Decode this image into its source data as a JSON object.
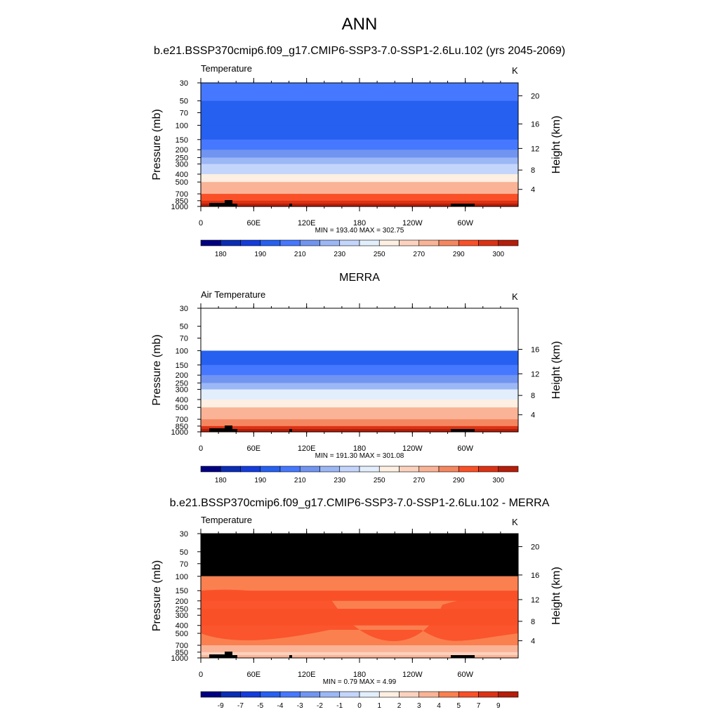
{
  "figure": {
    "title": "ANN"
  },
  "colors": {
    "warm_palette": [
      "#000080",
      "#0a2db4",
      "#143cdc",
      "#2560f0",
      "#4678ff",
      "#7094f0",
      "#9cb7f5",
      "#c4d5fc",
      "#e2eefc",
      "#fdefe2",
      "#fcd2be",
      "#fab396",
      "#f58760",
      "#fa5028",
      "#dc3214",
      "#b41e0a",
      "#820000"
    ],
    "diff_palette": [
      "#000080",
      "#0a2db4",
      "#143cdc",
      "#2560f0",
      "#4678ff",
      "#7094f0",
      "#9cb7f5",
      "#c4d5fc",
      "#e2eefc",
      "#fdefe2",
      "#fcd2be",
      "#fab396",
      "#fa8050",
      "#fa5028",
      "#dc3214",
      "#b41e0a",
      "#820000"
    ],
    "missing": "#000000",
    "background": "#ffffff"
  },
  "chart_data": [
    {
      "type": "heatmap",
      "panel_title": "b.e21.BSSP370cmip6.f09_g17.CMIP6-SSP3-7.0-SSP1-2.6Lu.102 (yrs 2045-2069)",
      "var_label": "Temperature",
      "units": "K",
      "xlabel": "",
      "ylabel": "Pressure (mb)",
      "y2label": "Height (km)",
      "x_ticks": [
        "0",
        "60E",
        "120E",
        "180",
        "120W",
        "60W"
      ],
      "y_ticks": [
        "30",
        "50",
        "70",
        "100",
        "150",
        "200",
        "250",
        "300",
        "400",
        "500",
        "700",
        "850",
        "1000"
      ],
      "y2_ticks": [
        "20",
        "16",
        "12",
        "8",
        "4"
      ],
      "stats": "MIN = 193.40  MAX = 302.75",
      "min": 193.4,
      "max": 302.75,
      "colorbar_labels": [
        "180",
        "190",
        "210",
        "230",
        "250",
        "270",
        "290",
        "300"
      ],
      "field": {
        "levels_mb": [
          30,
          50,
          70,
          100,
          150,
          200,
          250,
          300,
          400,
          500,
          700,
          850,
          1000
        ],
        "colour_index_by_level": [
          4,
          3,
          3,
          3,
          4,
          5,
          6,
          7,
          9,
          11,
          13,
          14,
          15
        ],
        "missing_above_mb": null
      }
    },
    {
      "type": "heatmap",
      "panel_title": "MERRA",
      "var_label": "Air Temperature",
      "units": "K",
      "xlabel": "",
      "ylabel": "Pressure (mb)",
      "y2label": "Height (km)",
      "x_ticks": [
        "0",
        "60E",
        "120E",
        "180",
        "120W",
        "60W"
      ],
      "y_ticks": [
        "30",
        "50",
        "70",
        "100",
        "150",
        "200",
        "250",
        "300",
        "400",
        "500",
        "700",
        "850",
        "1000"
      ],
      "y2_ticks": [
        "16",
        "12",
        "8",
        "4"
      ],
      "stats": "MIN = 191.30  MAX = 301.08",
      "min": 191.3,
      "max": 301.08,
      "colorbar_labels": [
        "180",
        "190",
        "210",
        "230",
        "250",
        "270",
        "290",
        "300"
      ],
      "field": {
        "levels_mb": [
          100,
          150,
          200,
          250,
          300,
          400,
          500,
          700,
          850,
          1000
        ],
        "colour_index_by_level": [
          3,
          4,
          5,
          6,
          8,
          9,
          11,
          12,
          14,
          15
        ],
        "missing_above_mb": 100,
        "missing_colour": "white"
      }
    },
    {
      "type": "heatmap",
      "panel_title": "b.e21.BSSP370cmip6.f09_g17.CMIP6-SSP3-7.0-SSP1-2.6Lu.102 - MERRA",
      "var_label": "Temperature",
      "units": "K",
      "xlabel": "",
      "ylabel": "Pressure (mb)",
      "y2label": "Height (km)",
      "x_ticks": [
        "0",
        "60E",
        "120E",
        "180",
        "120W",
        "60W"
      ],
      "y_ticks": [
        "30",
        "50",
        "70",
        "100",
        "150",
        "200",
        "250",
        "300",
        "400",
        "500",
        "700",
        "850",
        "1000"
      ],
      "y2_ticks": [
        "20",
        "16",
        "12",
        "8",
        "4"
      ],
      "stats": "MIN =   0.79  MAX =   4.99",
      "min": 0.79,
      "max": 4.99,
      "colorbar_labels": [
        "-9",
        "-7",
        "-5",
        "-4",
        "-3",
        "-2",
        "-1",
        "0",
        "1",
        "2",
        "3",
        "4",
        "5",
        "7",
        "9"
      ],
      "field": {
        "levels_mb": [
          100,
          150,
          200,
          250,
          300,
          400,
          500,
          700,
          850,
          1000
        ],
        "colour_index_by_level": [
          12,
          13,
          12,
          13,
          13,
          12,
          12,
          11,
          10,
          11
        ],
        "missing_above_mb": 100,
        "missing_colour": "black"
      }
    }
  ]
}
